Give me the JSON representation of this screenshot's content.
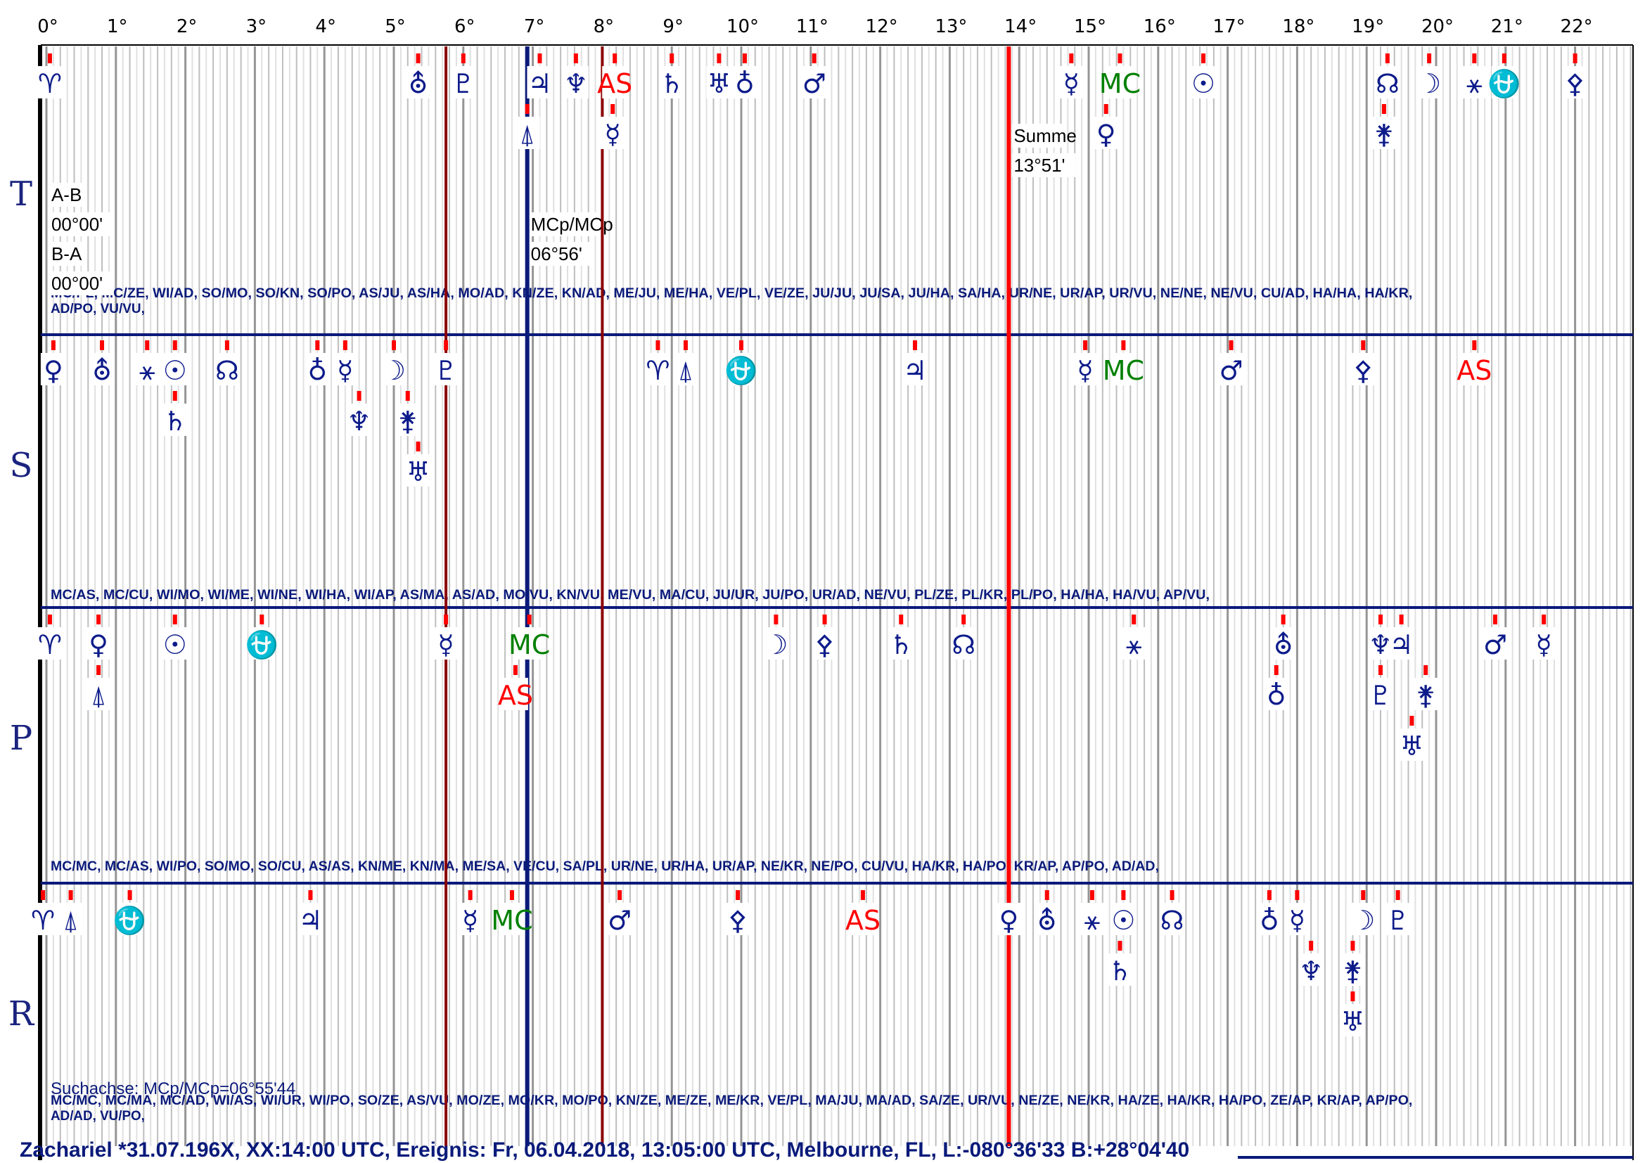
{
  "colors": {
    "glyph": "#0d1b8a",
    "red": "#ff0000",
    "green": "#008000",
    "dark_red": "#8b0000",
    "navy": "#0a1a7a",
    "grid_dark": "#8a8a8a",
    "grid_light": "#c8c8c8"
  },
  "chart_data": {
    "type": "scatter",
    "title": "",
    "x_unit": "degree",
    "xlim": [
      -0.1,
      22.95
    ],
    "ticks": [
      {
        "v": 0,
        "label": "0°"
      },
      {
        "v": 1,
        "label": "1°"
      },
      {
        "v": 2,
        "label": "2°"
      },
      {
        "v": 3,
        "label": "3°"
      },
      {
        "v": 4,
        "label": "4°"
      },
      {
        "v": 5,
        "label": "5°"
      },
      {
        "v": 6,
        "label": "6°"
      },
      {
        "v": 7,
        "label": "7°"
      },
      {
        "v": 8,
        "label": "8°"
      },
      {
        "v": 9,
        "label": "9°"
      },
      {
        "v": 10,
        "label": "10°"
      },
      {
        "v": 11,
        "label": "11°"
      },
      {
        "v": 12,
        "label": "12°"
      },
      {
        "v": 13,
        "label": "13°"
      },
      {
        "v": 14,
        "label": "14°"
      },
      {
        "v": 15,
        "label": "15°"
      },
      {
        "v": 16,
        "label": "16°"
      },
      {
        "v": 17,
        "label": "17°"
      },
      {
        "v": 18,
        "label": "18°"
      },
      {
        "v": 19,
        "label": "19°"
      },
      {
        "v": 20,
        "label": "20°"
      },
      {
        "v": 21,
        "label": "21°"
      },
      {
        "v": 22,
        "label": "22°"
      }
    ],
    "vertical_lines": [
      {
        "x": 5.75,
        "color": "dark_red",
        "name": "marker-line-5-45"
      },
      {
        "x": 6.92,
        "color": "navy",
        "name": "marker-line-mcp"
      },
      {
        "x": 8.0,
        "color": "dark_red",
        "name": "marker-line-8"
      },
      {
        "x": 13.85,
        "color": "red",
        "name": "marker-line-summe"
      }
    ],
    "rows": [
      {
        "label": "T",
        "points": [
          {
            "x": 0.05,
            "s": "♈",
            "c": "glyph",
            "lvl": 0
          },
          {
            "x": 5.35,
            "s": "⛢",
            "c": "glyph",
            "lvl": 0
          },
          {
            "x": 6.0,
            "s": "♇",
            "c": "glyph",
            "lvl": 0
          },
          {
            "x": 7.1,
            "s": "♃",
            "c": "glyph",
            "lvl": 0
          },
          {
            "x": 7.62,
            "s": "♆",
            "c": "glyph",
            "lvl": 0
          },
          {
            "x": 8.18,
            "s": "AS",
            "c": "red",
            "lvl": 0
          },
          {
            "x": 9.0,
            "s": "♄",
            "c": "glyph",
            "lvl": 0
          },
          {
            "x": 9.68,
            "s": "♅",
            "c": "glyph",
            "lvl": 0
          },
          {
            "x": 10.05,
            "s": "♁",
            "c": "glyph",
            "lvl": 0
          },
          {
            "x": 11.05,
            "s": "♂",
            "c": "glyph",
            "lvl": 0
          },
          {
            "x": 14.75,
            "s": "☿",
            "c": "glyph",
            "lvl": 0
          },
          {
            "x": 15.45,
            "s": "MC",
            "c": "green",
            "lvl": 0
          },
          {
            "x": 16.65,
            "s": "☉",
            "c": "glyph",
            "lvl": 0
          },
          {
            "x": 19.3,
            "s": "☊",
            "c": "glyph",
            "lvl": 0
          },
          {
            "x": 19.9,
            "s": "☽",
            "c": "glyph",
            "lvl": 0
          },
          {
            "x": 20.55,
            "s": "⚹",
            "c": "glyph",
            "lvl": 0
          },
          {
            "x": 20.98,
            "s": "⛎",
            "c": "glyph",
            "lvl": 0
          },
          {
            "x": 22.0,
            "s": "⚴",
            "c": "glyph",
            "lvl": 0
          },
          {
            "x": 6.92,
            "s": "⍋",
            "c": "glyph",
            "lvl": 1
          },
          {
            "x": 8.15,
            "s": "☿",
            "c": "glyph",
            "lvl": 1
          },
          {
            "x": 15.25,
            "s": "♀",
            "c": "glyph",
            "lvl": 1
          },
          {
            "x": 19.25,
            "s": "⚵",
            "c": "glyph",
            "lvl": 1
          }
        ],
        "notes": [
          {
            "x": 0.05,
            "lvl": 0,
            "text": "A-B"
          },
          {
            "x": 0.05,
            "lvl": 1,
            "text": "00°00'"
          },
          {
            "x": 0.05,
            "lvl": 2,
            "text": "B-A"
          },
          {
            "x": 0.05,
            "lvl": 3,
            "text": "00°00'"
          },
          {
            "x": 6.95,
            "lvl": 1,
            "text": "MCp/MCp"
          },
          {
            "x": 6.95,
            "lvl": 2,
            "text": "06°56'"
          },
          {
            "x": 13.9,
            "lvl": -2,
            "text": "Summe"
          },
          {
            "x": 13.9,
            "lvl": -1,
            "text": "13°51'"
          }
        ],
        "combos": [
          "MC/PL, MC/ZE, WI/AD, SO/MO, SO/KN, SO/PO, AS/JU, AS/HA, MO/AD, KN/ZE, KN/AD, ME/JU, ME/HA, VE/PL, VE/ZE, JU/JU, JU/SA, JU/HA, SA/HA, UR/NE, UR/AP, UR/VU, NE/NE, NE/VU, CU/AD, HA/HA, HA/KR,",
          "AD/PO, VU/VU,"
        ]
      },
      {
        "label": "S",
        "points": [
          {
            "x": 0.1,
            "s": "♀",
            "c": "glyph",
            "lvl": 0
          },
          {
            "x": 0.8,
            "s": "⛢",
            "c": "glyph",
            "lvl": 0
          },
          {
            "x": 1.45,
            "s": "⚹",
            "c": "glyph",
            "lvl": 0
          },
          {
            "x": 1.85,
            "s": "☉",
            "c": "glyph",
            "lvl": 0
          },
          {
            "x": 2.6,
            "s": "☊",
            "c": "glyph",
            "lvl": 0
          },
          {
            "x": 3.9,
            "s": "♁",
            "c": "glyph",
            "lvl": 0
          },
          {
            "x": 4.3,
            "s": "☿",
            "c": "glyph",
            "lvl": 0
          },
          {
            "x": 5.0,
            "s": "☽",
            "c": "glyph",
            "lvl": 0
          },
          {
            "x": 5.75,
            "s": "♇",
            "c": "glyph",
            "lvl": 0
          },
          {
            "x": 8.8,
            "s": "♈",
            "c": "glyph",
            "lvl": 0
          },
          {
            "x": 9.2,
            "s": "⍋",
            "c": "glyph",
            "lvl": 0
          },
          {
            "x": 10.0,
            "s": "⛎",
            "c": "glyph",
            "lvl": 0
          },
          {
            "x": 12.5,
            "s": "♃",
            "c": "glyph",
            "lvl": 0
          },
          {
            "x": 14.95,
            "s": "☿",
            "c": "glyph",
            "lvl": 0
          },
          {
            "x": 15.5,
            "s": "MC",
            "c": "green",
            "lvl": 0
          },
          {
            "x": 17.05,
            "s": "♂",
            "c": "glyph",
            "lvl": 0
          },
          {
            "x": 18.95,
            "s": "⚴",
            "c": "glyph",
            "lvl": 0
          },
          {
            "x": 20.55,
            "s": "AS",
            "c": "red",
            "lvl": 0
          },
          {
            "x": 1.85,
            "s": "♄",
            "c": "glyph",
            "lvl": 1
          },
          {
            "x": 4.5,
            "s": "♆",
            "c": "glyph",
            "lvl": 1
          },
          {
            "x": 5.2,
            "s": "⚵",
            "c": "glyph",
            "lvl": 1
          },
          {
            "x": 5.35,
            "s": "♅",
            "c": "glyph",
            "lvl": 2
          }
        ],
        "notes": [],
        "combos": [
          "MC/AS, MC/CU, WI/MO, WI/ME, WI/NE, WI/HA, WI/AP, AS/MA, AS/AD, MO/VU, KN/VU, ME/VU, MA/CU, JU/UR, JU/PO, UR/AD, NE/VU, PL/ZE, PL/KR, PL/PO, HA/HA, HA/VU, AP/VU,"
        ]
      },
      {
        "label": "P",
        "points": [
          {
            "x": 0.05,
            "s": "♈",
            "c": "glyph",
            "lvl": 0
          },
          {
            "x": 0.75,
            "s": "♀",
            "c": "glyph",
            "lvl": 0
          },
          {
            "x": 1.85,
            "s": "☉",
            "c": "glyph",
            "lvl": 0
          },
          {
            "x": 3.1,
            "s": "⛎",
            "c": "glyph",
            "lvl": 0
          },
          {
            "x": 5.75,
            "s": "☿",
            "c": "glyph",
            "lvl": 0
          },
          {
            "x": 6.95,
            "s": "MC",
            "c": "green",
            "lvl": 0
          },
          {
            "x": 10.5,
            "s": "☽",
            "c": "glyph",
            "lvl": 0
          },
          {
            "x": 11.2,
            "s": "⚴",
            "c": "glyph",
            "lvl": 0
          },
          {
            "x": 12.3,
            "s": "♄",
            "c": "glyph",
            "lvl": 0
          },
          {
            "x": 13.2,
            "s": "☊",
            "c": "glyph",
            "lvl": 0
          },
          {
            "x": 15.65,
            "s": "⚹",
            "c": "glyph",
            "lvl": 0
          },
          {
            "x": 17.8,
            "s": "⛢",
            "c": "glyph",
            "lvl": 0
          },
          {
            "x": 19.2,
            "s": "♆",
            "c": "glyph",
            "lvl": 0
          },
          {
            "x": 19.5,
            "s": "♃",
            "c": "glyph",
            "lvl": 0
          },
          {
            "x": 20.85,
            "s": "♂",
            "c": "glyph",
            "lvl": 0
          },
          {
            "x": 21.55,
            "s": "☿",
            "c": "glyph",
            "lvl": 0
          },
          {
            "x": 0.75,
            "s": "⍋",
            "c": "glyph",
            "lvl": 1
          },
          {
            "x": 6.75,
            "s": "AS",
            "c": "red",
            "lvl": 1
          },
          {
            "x": 17.7,
            "s": "♁",
            "c": "glyph",
            "lvl": 1
          },
          {
            "x": 19.2,
            "s": "♇",
            "c": "glyph",
            "lvl": 1
          },
          {
            "x": 19.85,
            "s": "⚵",
            "c": "glyph",
            "lvl": 1
          },
          {
            "x": 19.65,
            "s": "♅",
            "c": "glyph",
            "lvl": 2
          }
        ],
        "notes": [],
        "combos": [
          "MC/MC, MC/AS, WI/PO, SO/MO, SO/CU, AS/AS, KN/ME, KN/MA, ME/SA, VE/CU, SA/PL, UR/NE, UR/HA, UR/AP, NE/KR, NE/PO, CU/VU, HA/KR, HA/PO, KR/AP, AP/PO, AD/AD,"
        ]
      },
      {
        "label": "R",
        "points": [
          {
            "x": -0.05,
            "s": "♈",
            "c": "glyph",
            "lvl": 0
          },
          {
            "x": 0.35,
            "s": "⍋",
            "c": "glyph",
            "lvl": 0
          },
          {
            "x": 1.2,
            "s": "⛎",
            "c": "glyph",
            "lvl": 0
          },
          {
            "x": 3.8,
            "s": "♃",
            "c": "glyph",
            "lvl": 0
          },
          {
            "x": 6.1,
            "s": "☿",
            "c": "glyph",
            "lvl": 0
          },
          {
            "x": 6.7,
            "s": "MC",
            "c": "green",
            "lvl": 0
          },
          {
            "x": 8.25,
            "s": "♂",
            "c": "glyph",
            "lvl": 0
          },
          {
            "x": 9.95,
            "s": "⚴",
            "c": "glyph",
            "lvl": 0
          },
          {
            "x": 11.75,
            "s": "AS",
            "c": "red",
            "lvl": 0
          },
          {
            "x": 13.85,
            "s": "♀",
            "c": "glyph",
            "lvl": 0
          },
          {
            "x": 14.4,
            "s": "⛢",
            "c": "glyph",
            "lvl": 0
          },
          {
            "x": 15.05,
            "s": "⚹",
            "c": "glyph",
            "lvl": 0
          },
          {
            "x": 15.5,
            "s": "☉",
            "c": "glyph",
            "lvl": 0
          },
          {
            "x": 16.2,
            "s": "☊",
            "c": "glyph",
            "lvl": 0
          },
          {
            "x": 17.6,
            "s": "♁",
            "c": "glyph",
            "lvl": 0
          },
          {
            "x": 18.0,
            "s": "☿",
            "c": "glyph",
            "lvl": 0
          },
          {
            "x": 18.95,
            "s": "☽",
            "c": "glyph",
            "lvl": 0
          },
          {
            "x": 19.45,
            "s": "♇",
            "c": "glyph",
            "lvl": 0
          },
          {
            "x": 15.45,
            "s": "♄",
            "c": "glyph",
            "lvl": 1
          },
          {
            "x": 18.2,
            "s": "♆",
            "c": "glyph",
            "lvl": 1
          },
          {
            "x": 18.8,
            "s": "⚵",
            "c": "glyph",
            "lvl": 1
          },
          {
            "x": 18.8,
            "s": "♅",
            "c": "glyph",
            "lvl": 2
          }
        ],
        "notes": [],
        "combos": [
          "MC/MC, MC/MA, MC/AD, WI/AS, WI/UR, WI/PO, SO/ZE, AS/VU, MO/ZE, MO/KR, MO/PO, KN/ZE, ME/ZE, ME/KR, VE/PL, MA/JU, MA/AD, SA/ZE, UR/VU, NE/ZE, NE/KR, HA/ZE, HA/KR, HA/PO, ZE/AP, KR/AP, AP/PO,",
          "AD/AD, VU/PO,"
        ],
        "search_text": "Suchachse: MCp/MCp=06°55'44"
      }
    ]
  },
  "footer": "Zachariel  *31.07.196X, XX:14:00 UTC, Ereignis: Fr, 06.04.2018, 13:05:00 UTC, Melbourne, FL,  L:-080°36'33 B:+28°04'40"
}
